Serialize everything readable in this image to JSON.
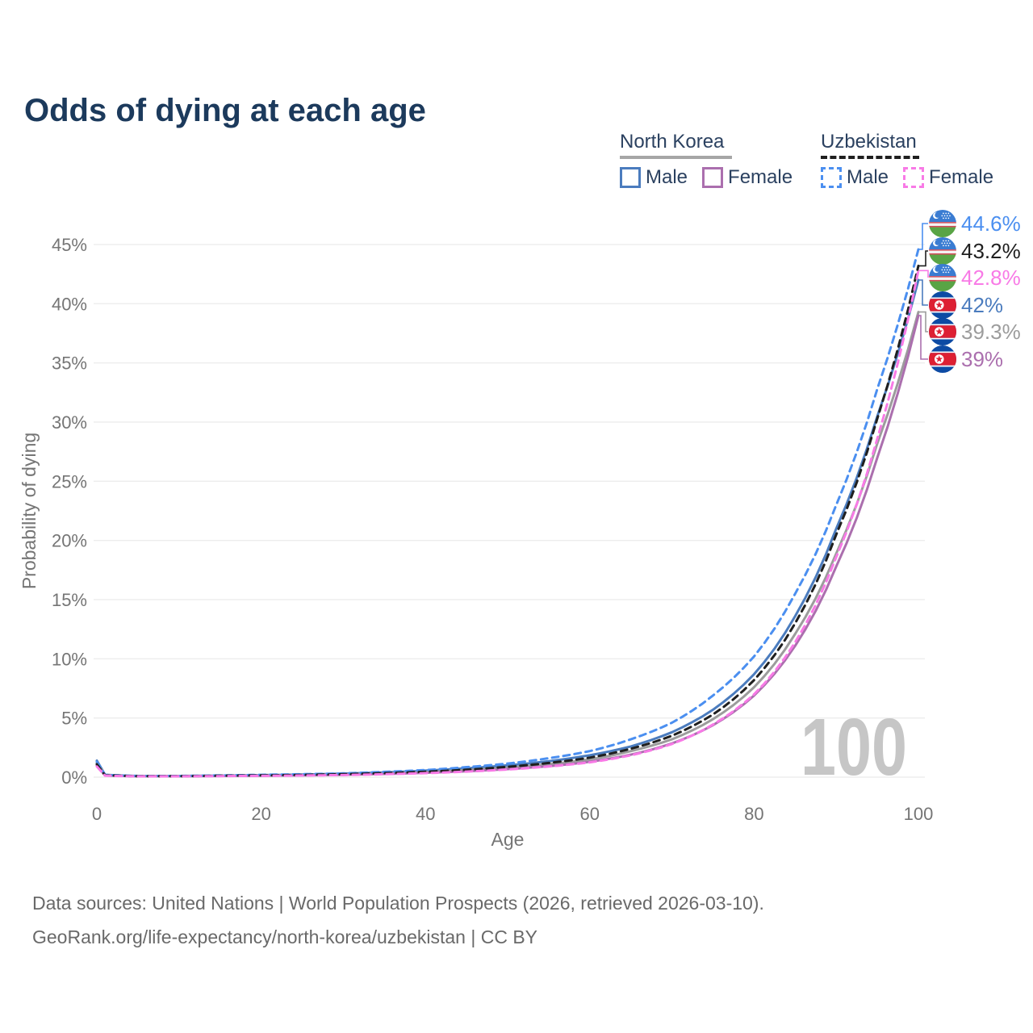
{
  "title": "Odds of dying at each age",
  "watermark": "100",
  "legend": {
    "groups": [
      {
        "name": "North Korea",
        "line_style": "solid",
        "underline_color": "#a6a6a6",
        "items": [
          {
            "label": "Male",
            "color": "#4b7cbe"
          },
          {
            "label": "Female",
            "color": "#ab6fae"
          }
        ]
      },
      {
        "name": "Uzbekistan",
        "line_style": "dashed",
        "underline_color": "#1f1f1f",
        "items": [
          {
            "label": "Male",
            "color": "#4b8ff0"
          },
          {
            "label": "Female",
            "color": "#f87ae6"
          }
        ]
      }
    ]
  },
  "chart_data": {
    "type": "line",
    "title": "Odds of dying at each age",
    "xlabel": "Age",
    "ylabel": "Probability of dying",
    "xlim": [
      0,
      100
    ],
    "ylim": [
      0,
      45
    ],
    "grid": true,
    "legend_position": "top-right",
    "x_ticks": [
      0,
      20,
      40,
      60,
      80,
      100
    ],
    "x_tick_labels": [
      "0",
      "20",
      "40",
      "60",
      "80",
      "100"
    ],
    "y_ticks": [
      0,
      5,
      10,
      15,
      20,
      25,
      30,
      35,
      40,
      45
    ],
    "y_tick_labels": [
      "0%",
      "5%",
      "10%",
      "15%",
      "20%",
      "25%",
      "30%",
      "35%",
      "40%",
      "45%"
    ],
    "x": [
      0,
      1,
      5,
      10,
      15,
      20,
      25,
      30,
      35,
      40,
      45,
      50,
      55,
      60,
      65,
      70,
      75,
      80,
      85,
      90,
      95,
      100
    ],
    "series": [
      {
        "id": "uz-male",
        "name": "Uzbekistan Male",
        "flag": "uz",
        "color": "#4b8ff0",
        "dash": true,
        "end_label": "44.6%",
        "values": [
          1.3,
          0.2,
          0.1,
          0.1,
          0.15,
          0.2,
          0.25,
          0.32,
          0.45,
          0.6,
          0.85,
          1.15,
          1.6,
          2.2,
          3.2,
          4.6,
          6.9,
          10.2,
          15.5,
          23.0,
          32.8,
          44.6
        ]
      },
      {
        "id": "uz-all",
        "name": "Uzbekistan",
        "flag": "uz",
        "color": "#1f1f1f",
        "dash": true,
        "end_label": "43.2%",
        "values": [
          1.1,
          0.16,
          0.08,
          0.08,
          0.12,
          0.15,
          0.19,
          0.25,
          0.34,
          0.46,
          0.63,
          0.87,
          1.2,
          1.65,
          2.4,
          3.5,
          5.3,
          8.2,
          13.0,
          20.5,
          30.3,
          43.2
        ]
      },
      {
        "id": "uz-female",
        "name": "Uzbekistan Female",
        "flag": "uz",
        "color": "#f87ae6",
        "dash": true,
        "end_label": "42.8%",
        "values": [
          0.9,
          0.13,
          0.07,
          0.07,
          0.09,
          0.11,
          0.14,
          0.18,
          0.25,
          0.34,
          0.47,
          0.65,
          0.9,
          1.25,
          1.85,
          2.8,
          4.45,
          7.0,
          11.4,
          18.6,
          28.6,
          42.8
        ]
      },
      {
        "id": "nk-male",
        "name": "North Korea Male",
        "flag": "nk",
        "color": "#4b7cbe",
        "dash": false,
        "end_label": "42%",
        "values": [
          1.4,
          0.2,
          0.1,
          0.1,
          0.13,
          0.17,
          0.22,
          0.3,
          0.4,
          0.55,
          0.75,
          1.0,
          1.35,
          1.85,
          2.6,
          3.8,
          5.7,
          8.7,
          13.6,
          21.0,
          30.5,
          42.0
        ]
      },
      {
        "id": "nk-all",
        "name": "North Korea",
        "flag": "nk",
        "color": "#9c9c9c",
        "dash": false,
        "end_label": "39.3%",
        "values": [
          1.2,
          0.17,
          0.09,
          0.09,
          0.11,
          0.14,
          0.18,
          0.24,
          0.33,
          0.44,
          0.6,
          0.8,
          1.1,
          1.5,
          2.2,
          3.2,
          4.9,
          7.6,
          12.1,
          18.9,
          28.2,
          39.3
        ]
      },
      {
        "id": "nk-female",
        "name": "North Korea Female",
        "flag": "nk",
        "color": "#ab6fae",
        "dash": false,
        "end_label": "39%",
        "values": [
          1.0,
          0.14,
          0.08,
          0.08,
          0.1,
          0.12,
          0.15,
          0.2,
          0.27,
          0.37,
          0.5,
          0.68,
          0.93,
          1.3,
          1.9,
          2.85,
          4.4,
          6.9,
          11.1,
          17.8,
          27.0,
          39.0
        ]
      }
    ]
  },
  "footer": {
    "line1": "Data sources: United Nations | World Population Prospects (2026, retrieved 2026-03-10).",
    "line2": "GeoRank.org/life-expectancy/north-korea/uzbekistan | CC BY"
  }
}
